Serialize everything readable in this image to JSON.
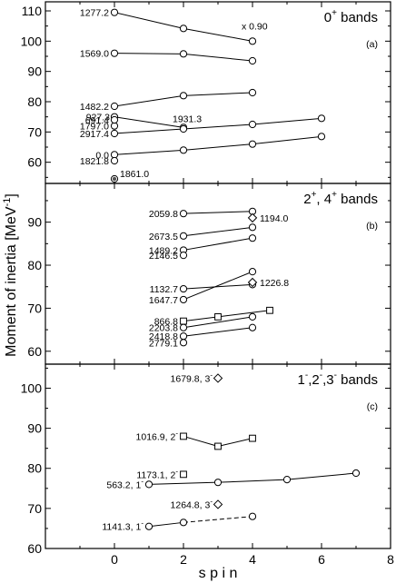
{
  "chart_data": {
    "type": "line",
    "xlabel": "s p i n",
    "ylabel": "Moment of inertia [MeV",
    "ylabel_sup": "-1",
    "ylabel_close": "]",
    "xlim": [
      -2,
      8
    ],
    "xticks": [
      0,
      2,
      4,
      6,
      8
    ],
    "panels": [
      {
        "id": "a",
        "title_main": "0",
        "title_sup": "+",
        "title_rest": " bands",
        "sublabel": "(a)",
        "ylim": [
          53,
          113
        ],
        "yticks": [
          60,
          70,
          80,
          90,
          100,
          110
        ],
        "annotations": [
          {
            "text": "x 0.90",
            "x": 4.0,
            "y": 102.0
          }
        ],
        "series": [
          {
            "label": "1277.2",
            "marker": "circle",
            "style": "solid",
            "x": [
              0,
              2,
              4
            ],
            "y": [
              109.5,
              104.2,
              100.0
            ]
          },
          {
            "label": "1569.0",
            "marker": "circle",
            "style": "solid",
            "x": [
              0,
              2,
              4
            ],
            "y": [
              96.0,
              95.8,
              93.5
            ]
          },
          {
            "label": "1482.2",
            "marker": "circle",
            "style": "solid",
            "x": [
              0,
              2,
              4
            ],
            "y": [
              78.5,
              82.0,
              83.0
            ]
          },
          {
            "label": "927.3",
            "marker": "circle",
            "style": "solid",
            "x": [
              0,
              2
            ],
            "y": [
              75.0,
              71.5
            ],
            "label_right": "1931.3"
          },
          {
            "label": "1797.0",
            "marker": "circle",
            "style": "none",
            "x": [
              0
            ],
            "y": [
              72.0
            ]
          },
          {
            "label": "2917.4",
            "marker": "circle",
            "style": "solid",
            "x": [
              0,
              2,
              4,
              6
            ],
            "y": [
              69.5,
              71.0,
              72.5,
              74.5
            ]
          },
          {
            "label": "691.4",
            "marker": "circle",
            "style": "none",
            "x": [
              0
            ],
            "y": [
              74.0
            ]
          },
          {
            "label": "0.0",
            "marker": "circle",
            "style": "solid",
            "x": [
              0,
              2,
              4,
              6
            ],
            "y": [
              62.5,
              64.0,
              66.0,
              68.5
            ]
          },
          {
            "label": "1821.8",
            "marker": "circle",
            "style": "none",
            "x": [
              0
            ],
            "y": [
              60.5
            ]
          },
          {
            "label": "1861.0",
            "marker": "circle-filled",
            "style": "none",
            "x": [
              0
            ],
            "y": [
              54.5
            ]
          }
        ]
      },
      {
        "id": "b",
        "title_main": "2",
        "title_sup": "+",
        "title_mid": ", 4",
        "title_sup2": "+",
        "title_rest": " bands",
        "sublabel": "(b)",
        "ylim": [
          57,
          99
        ],
        "yticks": [
          60,
          70,
          80,
          90
        ],
        "series": [
          {
            "label": "2059.8",
            "marker": "circle",
            "style": "solid",
            "x": [
              2,
              4
            ],
            "y": [
              92.0,
              92.5
            ]
          },
          {
            "label": "1194.0",
            "marker": "diamond",
            "style": "none",
            "x": [
              4
            ],
            "y": [
              91.0
            ],
            "label_right": "1194.0"
          },
          {
            "label": "2673.5",
            "marker": "circle",
            "style": "solid",
            "x": [
              2,
              4
            ],
            "y": [
              86.8,
              88.8
            ]
          },
          {
            "label": "1489.2",
            "marker": "circle",
            "style": "solid",
            "x": [
              2,
              4
            ],
            "y": [
              83.5,
              86.3
            ]
          },
          {
            "label": "2146.5",
            "marker": "circle",
            "style": "none",
            "x": [
              2
            ],
            "y": [
              82.3
            ]
          },
          {
            "label": "1132.7",
            "marker": "circle",
            "style": "solid",
            "x": [
              2,
              4
            ],
            "y": [
              74.5,
              75.5
            ]
          },
          {
            "label": "1226.8",
            "marker": "diamond",
            "style": "none",
            "x": [
              4
            ],
            "y": [
              76.0
            ],
            "label_right": "1226.8"
          },
          {
            "label": "1647.7",
            "marker": "circle",
            "style": "solid",
            "x": [
              2,
              4
            ],
            "y": [
              72.0,
              78.5
            ]
          },
          {
            "label": "866.8",
            "marker": "square",
            "style": "solid",
            "x": [
              2,
              3,
              4.5
            ],
            "y": [
              67.0,
              68.0,
              69.5
            ]
          },
          {
            "label": "2203.8",
            "marker": "circle",
            "style": "solid",
            "x": [
              2,
              4
            ],
            "y": [
              65.5,
              68.0
            ]
          },
          {
            "label": "2418.8",
            "marker": "circle",
            "style": "solid",
            "x": [
              2,
              4
            ],
            "y": [
              63.5,
              65.5
            ]
          },
          {
            "label": "2779.1",
            "marker": "circle",
            "style": "none",
            "x": [
              2
            ],
            "y": [
              62.0
            ]
          }
        ]
      },
      {
        "id": "c",
        "title_main": "1",
        "title_sup": "-",
        "title_mid": ",2",
        "title_sup2": "-",
        "title_mid2": ",3",
        "title_sup3": "-",
        "title_rest": " bands",
        "sublabel": "(c)",
        "ylim": [
          60,
          106
        ],
        "yticks": [
          60,
          70,
          80,
          90,
          100
        ],
        "series": [
          {
            "label": "1679.8, 3",
            "label_sup": "-",
            "marker": "diamond",
            "style": "none",
            "x": [
              3
            ],
            "y": [
              102.5
            ],
            "label_pos": "left"
          },
          {
            "label": "1016.9, 2",
            "label_sup": "-",
            "marker": "square",
            "style": "solid",
            "x": [
              2,
              3,
              4
            ],
            "y": [
              88.0,
              85.5,
              87.5
            ]
          },
          {
            "label": "1173.1, 2",
            "label_sup": "-",
            "marker": "square",
            "style": "none",
            "x": [
              2
            ],
            "y": [
              78.5
            ]
          },
          {
            "label": "563.2, 1",
            "label_sup": "-",
            "marker": "circle",
            "style": "solid",
            "x": [
              1,
              3,
              5,
              7
            ],
            "y": [
              76.0,
              76.5,
              77.2,
              78.8
            ]
          },
          {
            "label": "1264.8, 3",
            "label_sup": "-",
            "marker": "diamond",
            "style": "none",
            "x": [
              3
            ],
            "y": [
              71.0
            ],
            "label_pos": "left"
          },
          {
            "label": "1141.3, 1",
            "label_sup": "-",
            "marker": "circle",
            "style": "solid-dashed",
            "x": [
              1,
              2,
              4
            ],
            "y": [
              65.5,
              66.5,
              68.0
            ]
          }
        ]
      }
    ]
  }
}
